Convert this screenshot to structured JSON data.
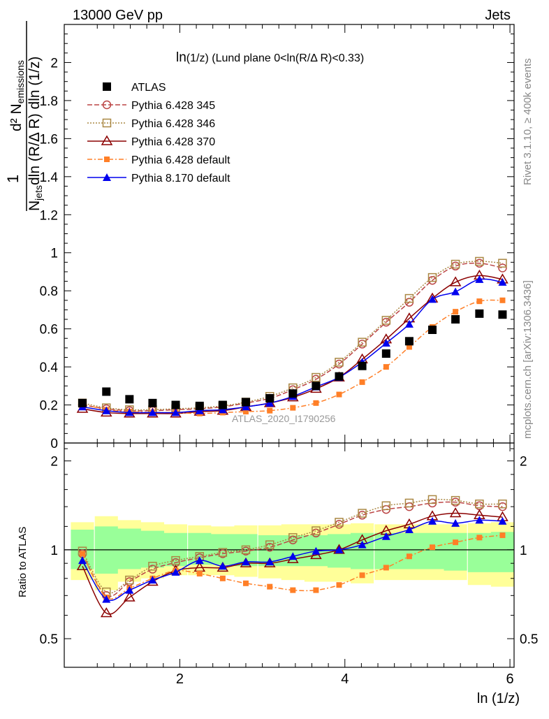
{
  "header": {
    "left": "13000 GeV pp",
    "right": "Jets"
  },
  "side_labels": {
    "rivet": "Rivet 3.1.10, ≥ 400k events",
    "mcplots": "mcplots.cern.ch [arXiv:1306.3436]"
  },
  "watermark": "ATLAS_2020_I1790256",
  "plot_title_main": "ln",
  "plot_title_rest": "(1/z)  (Lund plane 0<ln(R/Δ R)<0.33)",
  "ylabel": {
    "numerator": "d² N",
    "numerator_sub": "emissions",
    "one": "1",
    "denominator_a": "N",
    "denominator_sub": "jets",
    "denominator_b": "dln (R/Δ R) dln (1/z)"
  },
  "ratio_ylabel": "Ratio to ATLAS",
  "xlabel": "ln (1/z)",
  "colors": {
    "atlas": "#000000",
    "p345": "#bb4444",
    "p346": "#aa8844",
    "p370": "#8b0000",
    "p6def": "#ff7f27",
    "p8def": "#0000ee",
    "band_yellow": "#ffff99",
    "band_green": "#99ff99"
  },
  "chart_data": {
    "type": "scatter",
    "x": [
      0.82,
      1.11,
      1.39,
      1.67,
      1.95,
      2.24,
      2.52,
      2.8,
      3.09,
      3.37,
      3.65,
      3.93,
      4.21,
      4.5,
      4.78,
      5.06,
      5.34,
      5.63,
      5.91
    ],
    "xlim": [
      0.0,
      6.0
    ],
    "ylim": [
      0,
      2.2
    ],
    "x_ticks": [
      2,
      4,
      6
    ],
    "y_ticks": [
      0,
      0.2,
      0.4,
      0.6,
      0.8,
      1.0,
      1.2,
      1.4,
      1.6,
      1.8,
      2.0
    ],
    "ratio_ylim": [
      0.4,
      2.3
    ],
    "ratio_ticks": [
      0.5,
      1,
      2
    ],
    "series": [
      {
        "name": "ATLAS",
        "key": "atlas",
        "marker": "square-filled",
        "dash": "none",
        "values": [
          0.21,
          0.27,
          0.23,
          0.21,
          0.2,
          0.195,
          0.2,
          0.215,
          0.235,
          0.26,
          0.3,
          0.35,
          0.405,
          0.47,
          0.535,
          0.595,
          0.65,
          0.68,
          0.675
        ],
        "ratio": [
          1.0,
          1.0,
          1.0,
          1.0,
          1.0,
          1.0,
          1.0,
          1.0,
          1.0,
          1.0,
          1.0,
          1.0,
          1.0,
          1.0,
          1.0,
          1.0,
          1.0,
          1.0,
          1.0
        ]
      },
      {
        "name": "Pythia 6.428 345",
        "key": "p345",
        "marker": "circle-open",
        "dash": "7,3",
        "values": [
          0.2,
          0.18,
          0.17,
          0.17,
          0.175,
          0.18,
          0.19,
          0.21,
          0.235,
          0.28,
          0.335,
          0.415,
          0.52,
          0.635,
          0.74,
          0.855,
          0.93,
          0.945,
          0.92
        ],
        "ratio": [
          0.97,
          0.7,
          0.78,
          0.86,
          0.905,
          0.94,
          0.97,
          0.99,
          1.02,
          1.08,
          1.14,
          1.22,
          1.31,
          1.37,
          1.4,
          1.44,
          1.45,
          1.41,
          1.4
        ]
      },
      {
        "name": "Pythia 6.428 346",
        "key": "p346",
        "marker": "square-open",
        "dash": "2,2",
        "values": [
          0.21,
          0.185,
          0.175,
          0.175,
          0.18,
          0.185,
          0.195,
          0.215,
          0.245,
          0.29,
          0.345,
          0.425,
          0.53,
          0.645,
          0.76,
          0.87,
          0.94,
          0.955,
          0.945
        ],
        "ratio": [
          0.99,
          0.72,
          0.79,
          0.88,
          0.92,
          0.95,
          0.98,
          1.0,
          1.04,
          1.1,
          1.16,
          1.24,
          1.33,
          1.41,
          1.44,
          1.48,
          1.47,
          1.43,
          1.43
        ]
      },
      {
        "name": "Pythia 6.428 370",
        "key": "p370",
        "marker": "triangle-open",
        "dash": "none",
        "values": [
          0.18,
          0.16,
          0.155,
          0.155,
          0.155,
          0.165,
          0.17,
          0.19,
          0.21,
          0.24,
          0.285,
          0.345,
          0.44,
          0.545,
          0.655,
          0.76,
          0.845,
          0.88,
          0.86
        ],
        "ratio": [
          0.88,
          0.61,
          0.69,
          0.78,
          0.85,
          0.87,
          0.87,
          0.9,
          0.9,
          0.93,
          0.96,
          1.0,
          1.08,
          1.16,
          1.22,
          1.3,
          1.33,
          1.31,
          1.29
        ]
      },
      {
        "name": "Pythia 6.428 default",
        "key": "p6def",
        "marker": "square-small-filled",
        "dash": "7,3,2,3",
        "values": [
          0.205,
          0.175,
          0.165,
          0.16,
          0.16,
          0.155,
          0.16,
          0.165,
          0.17,
          0.185,
          0.21,
          0.255,
          0.32,
          0.4,
          0.505,
          0.61,
          0.69,
          0.745,
          0.75
        ],
        "ratio": [
          0.97,
          0.69,
          0.74,
          0.8,
          0.85,
          0.83,
          0.8,
          0.77,
          0.75,
          0.73,
          0.73,
          0.76,
          0.82,
          0.87,
          0.95,
          1.02,
          1.06,
          1.1,
          1.12
        ]
      },
      {
        "name": "Pythia 8.170 default",
        "key": "p8def",
        "marker": "triangle-filled",
        "dash": "none",
        "values": [
          0.19,
          0.17,
          0.16,
          0.16,
          0.16,
          0.17,
          0.175,
          0.19,
          0.21,
          0.245,
          0.295,
          0.345,
          0.425,
          0.525,
          0.625,
          0.755,
          0.795,
          0.86,
          0.845
        ],
        "ratio": [
          0.92,
          0.68,
          0.73,
          0.79,
          0.84,
          0.92,
          0.88,
          0.91,
          0.91,
          0.95,
          0.99,
          1.0,
          1.04,
          1.11,
          1.17,
          1.25,
          1.23,
          1.26,
          1.25
        ]
      }
    ],
    "band_inner": [
      [
        0.82,
        0.86,
        1.17
      ],
      [
        1.11,
        0.83,
        1.2
      ],
      [
        1.39,
        0.86,
        1.18
      ],
      [
        1.67,
        0.87,
        1.16
      ],
      [
        1.95,
        0.88,
        1.14
      ],
      [
        2.24,
        0.89,
        1.14
      ],
      [
        2.52,
        0.89,
        1.13
      ],
      [
        2.8,
        0.88,
        1.13
      ],
      [
        3.09,
        0.88,
        1.12
      ],
      [
        3.37,
        0.88,
        1.12
      ],
      [
        3.65,
        0.88,
        1.12
      ],
      [
        3.93,
        0.87,
        1.13
      ],
      [
        4.21,
        0.86,
        1.14
      ],
      [
        4.5,
        0.86,
        1.14
      ],
      [
        4.78,
        0.86,
        1.14
      ],
      [
        5.06,
        0.86,
        1.14
      ],
      [
        5.34,
        0.85,
        1.14
      ],
      [
        5.63,
        0.84,
        1.14
      ],
      [
        5.91,
        0.84,
        1.15
      ]
    ],
    "band_outer": [
      [
        0.82,
        0.79,
        1.24
      ],
      [
        1.11,
        0.73,
        1.3
      ],
      [
        1.39,
        0.78,
        1.26
      ],
      [
        1.67,
        0.8,
        1.24
      ],
      [
        1.95,
        0.82,
        1.22
      ],
      [
        2.24,
        0.82,
        1.21
      ],
      [
        2.52,
        0.82,
        1.2
      ],
      [
        2.8,
        0.81,
        1.21
      ],
      [
        3.09,
        0.8,
        1.21
      ],
      [
        3.37,
        0.79,
        1.22
      ],
      [
        3.65,
        0.78,
        1.22
      ],
      [
        3.93,
        0.78,
        1.22
      ],
      [
        4.21,
        0.77,
        1.23
      ],
      [
        4.5,
        0.79,
        1.22
      ],
      [
        4.78,
        0.79,
        1.22
      ],
      [
        5.06,
        0.79,
        1.22
      ],
      [
        5.34,
        0.79,
        1.22
      ],
      [
        5.63,
        0.76,
        1.23
      ],
      [
        5.91,
        0.75,
        1.24
      ]
    ]
  }
}
